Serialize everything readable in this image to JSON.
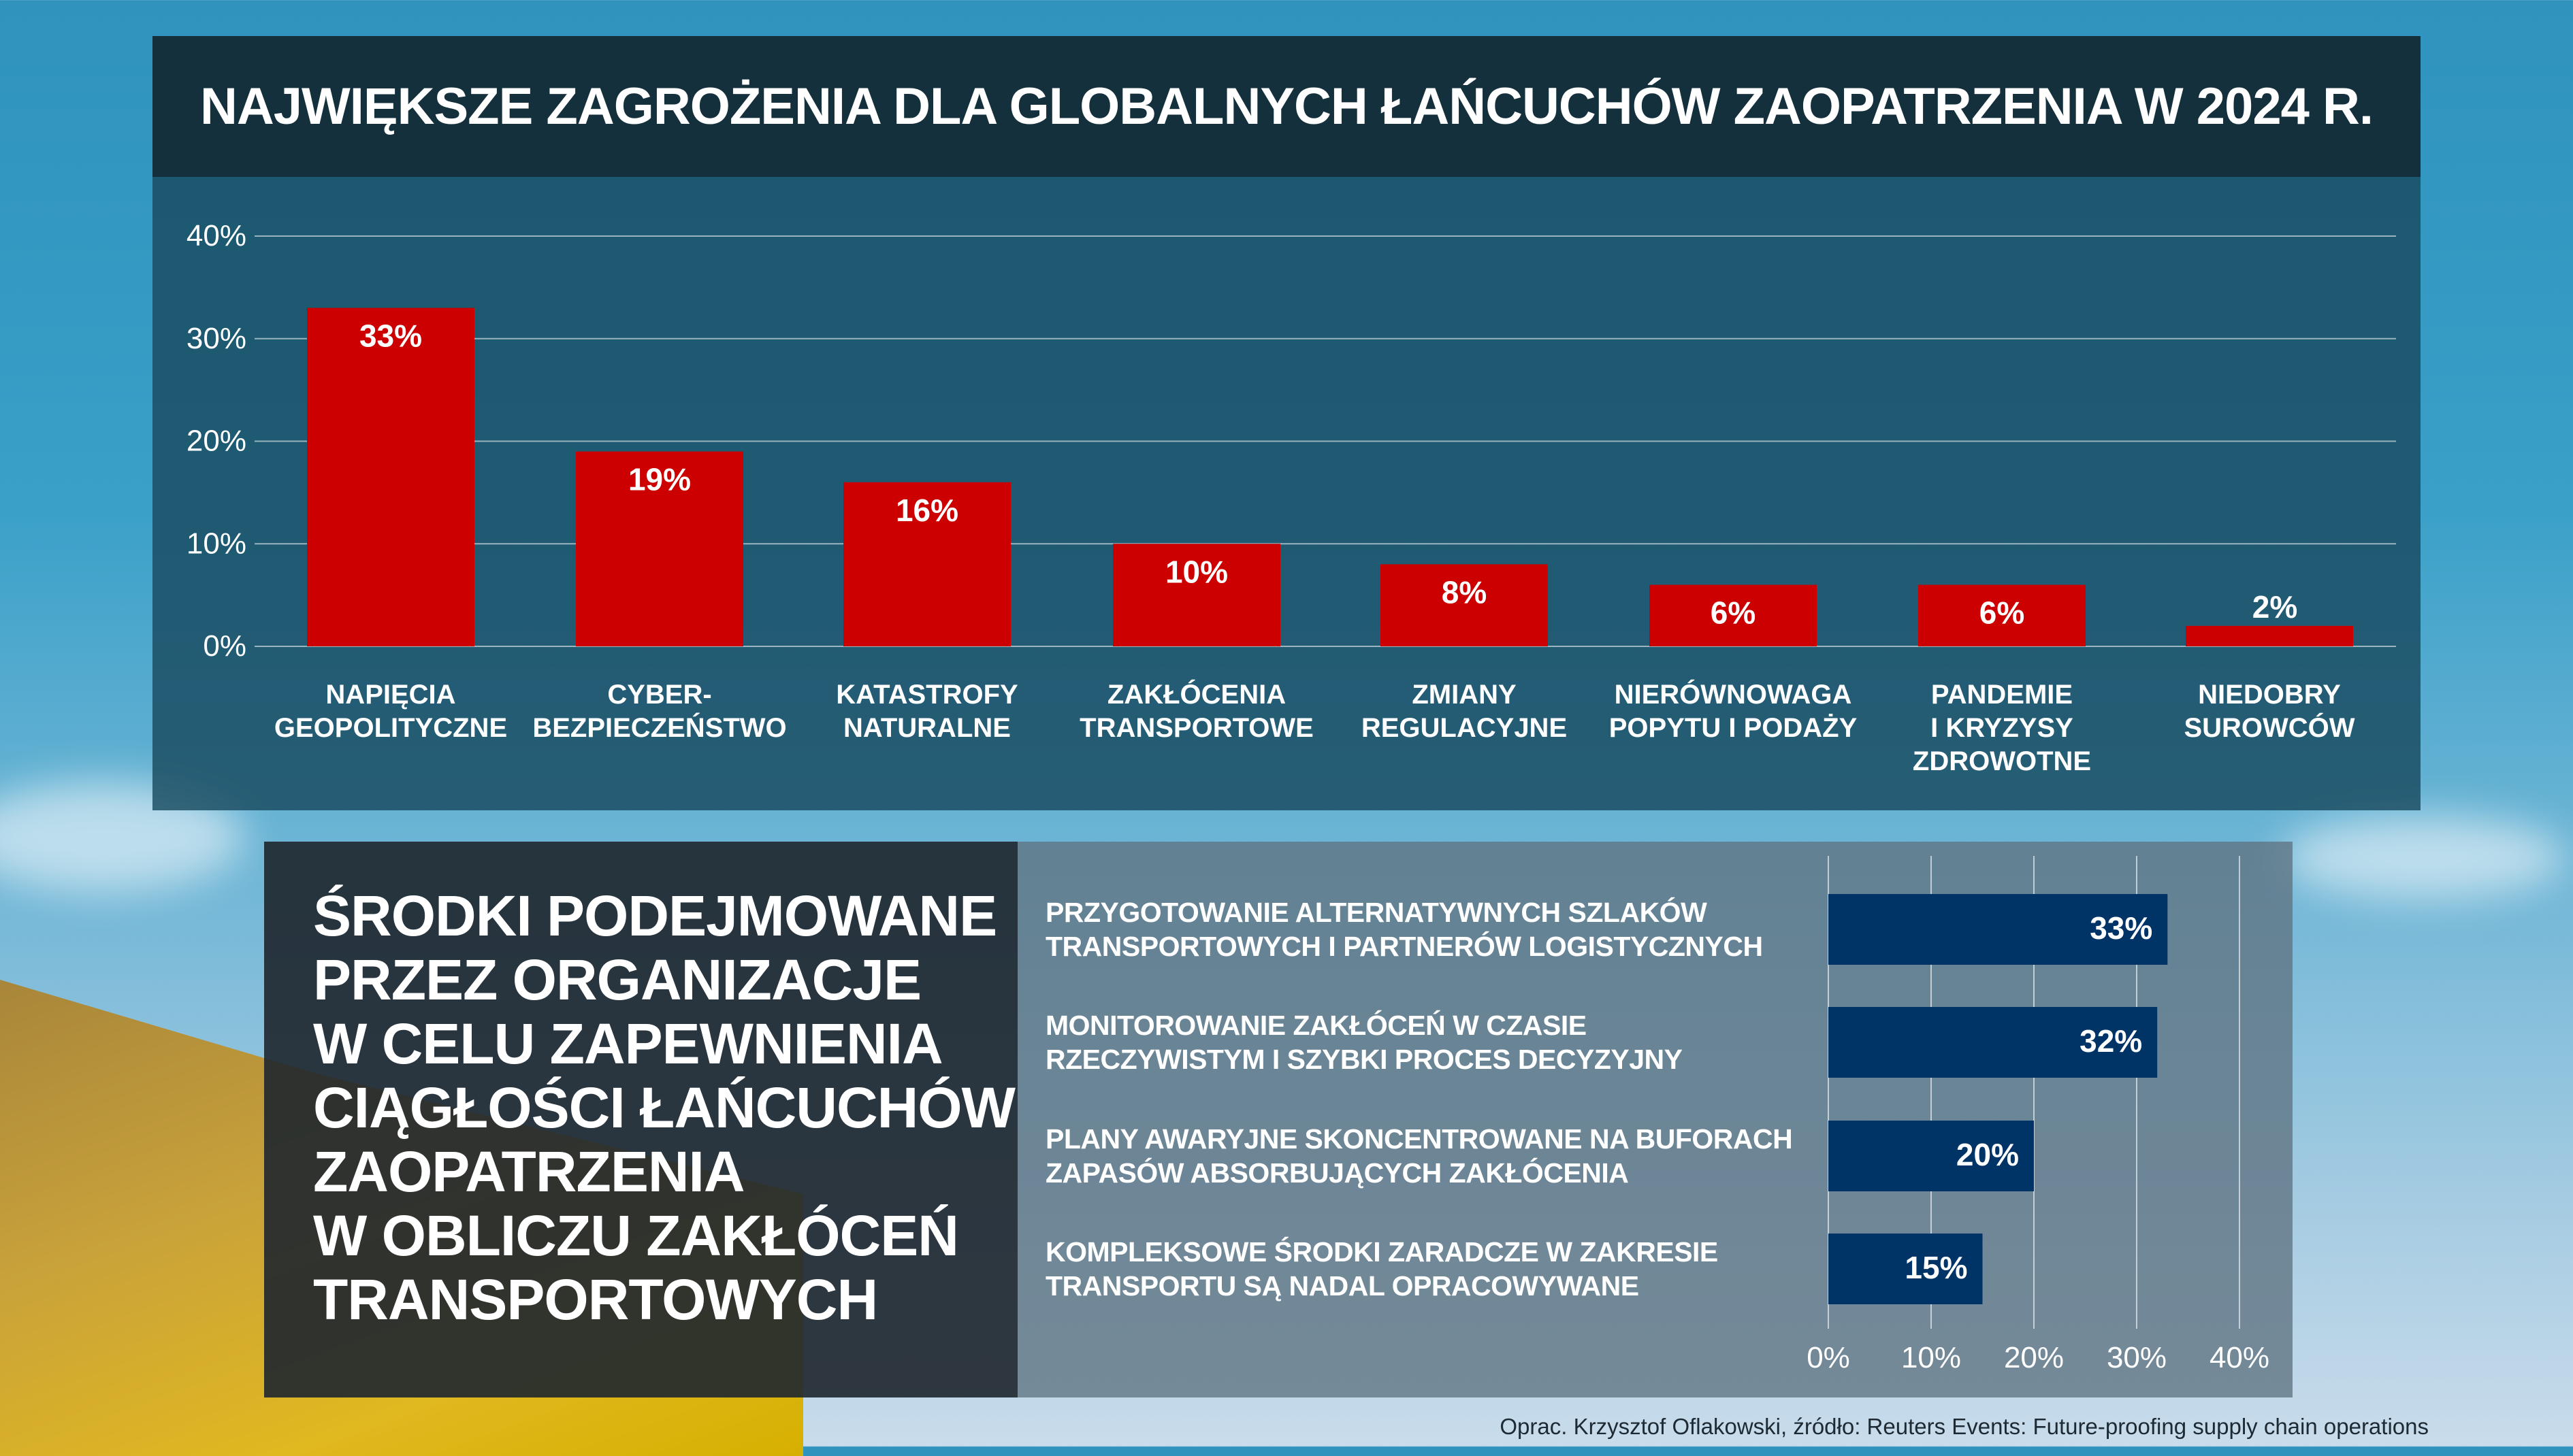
{
  "title": "NAJWIĘKSZE ZAGROŻENIA DLA GLOBALNYCH ŁAŃCUCHÓW ZAOPATRZENIA W 2024 R.",
  "colors": {
    "bar_red": "#cc0000",
    "bar_navy": "#003366",
    "title_bg": "#14303d"
  },
  "chart_data": [
    {
      "type": "bar",
      "title": "NAJWIĘKSZE ZAGROŻENIA DLA GLOBALNYCH ŁAŃCUCHÓW ZAOPATRZENIA W 2024 R.",
      "categories": [
        "NAPIĘCIA\nGEOPOLITYCZNE",
        "CYBER-\nBEZPIECZEŃSTWO",
        "KATASTROFY\nNATURALNE",
        "ZAKŁÓCENIA\nTRANSPORTOWE",
        "ZMIANY\nREGULACYJNE",
        "NIERÓWNOWAGA\nPOPYTU I PODAŻY",
        "PANDEMIE\nI KRYZYSY\nZDROWOTNE",
        "NIEDOBRY\nSUROWCÓW"
      ],
      "values": [
        33,
        19,
        16,
        10,
        8,
        6,
        6,
        2
      ],
      "data_labels": [
        "33%",
        "19%",
        "16%",
        "10%",
        "8%",
        "6%",
        "6%",
        "2%"
      ],
      "ylim": [
        0,
        40
      ],
      "yticks": [
        "0%",
        "10%",
        "20%",
        "30%",
        "40%"
      ],
      "grid": true
    },
    {
      "type": "bar",
      "orientation": "horizontal",
      "title": "ŚRODKI PODEJMOWANE\nPRZEZ ORGANIZACJE\nW CELU  ZAPEWNIENIA\nCIĄGŁOŚCI ŁAŃCUCHÓW\nZAOPATRZENIA\nW OBLICZU ZAKŁÓCEŃ\nTRANSPORTOWYCH",
      "categories": [
        "PRZYGOTOWANIE ALTERNATYWNYCH SZLAKÓW\nTRANSPORTOWYCH I PARTNERÓW  LOGISTYCZNYCH",
        "MONITOROWANIE ZAKŁÓCEŃ W CZASIE\nRZECZYWISTYM I SZYBKI PROCES DECYZYJNY",
        "PLANY AWARYJNE SKONCENTROWANE NA BUFORACH\nZAPASÓW  ABSORBUJĄCYCH  ZAKŁÓCENIA",
        "KOMPLEKSOWE  ŚRODKI ZARADCZE  W ZAKRESIE\nTRANSPORTU  SĄ NADAL  OPRACOWYWANE"
      ],
      "values": [
        33,
        32,
        20,
        15
      ],
      "data_labels": [
        "33%",
        "32%",
        "20%",
        "15%"
      ],
      "xlim": [
        0,
        40
      ],
      "xticks": [
        "0%",
        "10%",
        "20%",
        "30%",
        "40%"
      ],
      "grid": true
    }
  ],
  "footer": "Oprac. Krzysztof Oflakowski, źródło: Reuters Events: Future-proofing supply chain operations"
}
